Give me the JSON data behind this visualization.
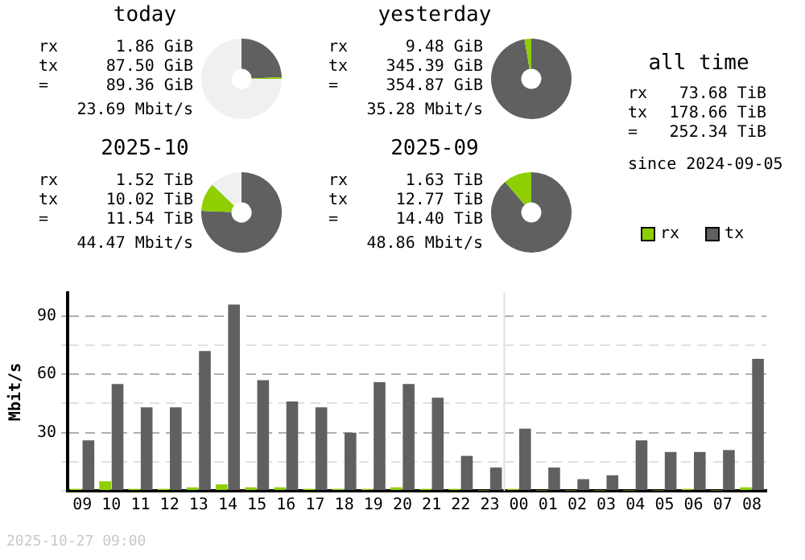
{
  "chart_data": [
    {
      "type": "donut",
      "title": "today",
      "categories": [
        null,
        null,
        null
      ],
      "values": [
        24.4,
        0.6,
        75.0
      ],
      "colors": [
        "#606060",
        "#8fce00",
        "#f0f0f0"
      ],
      "annotations": [
        "rx",
        "1.86 GiB",
        "tx",
        "87.50 GiB",
        "=",
        "89.36 GiB",
        "23.69 Mbit/s"
      ]
    },
    {
      "type": "donut",
      "title": "yesterday",
      "categories": [
        null,
        null
      ],
      "values": [
        97.3,
        2.7
      ],
      "colors": [
        "#606060",
        "#8fce00"
      ],
      "annotations": [
        "rx",
        "9.48 GiB",
        "tx",
        "345.39 GiB",
        "=",
        "354.87 GiB",
        "35.28 Mbit/s"
      ]
    },
    {
      "type": "other",
      "title": "all time",
      "annotations": [
        "rx",
        "73.68 TiB",
        "tx",
        "178.66 TiB",
        "=",
        "252.34 TiB",
        "since 2024-09-05"
      ]
    },
    {
      "type": "donut",
      "title": "2025-10",
      "categories": [
        null,
        null,
        null
      ],
      "values": [
        75.6,
        11.5,
        12.9
      ],
      "colors": [
        "#606060",
        "#8fce00",
        "#f0f0f0"
      ],
      "annotations": [
        "rx",
        "1.52 TiB",
        "tx",
        "10.02 TiB",
        "=",
        "11.54 TiB",
        "44.47 Mbit/s"
      ]
    },
    {
      "type": "donut",
      "title": "2025-09",
      "categories": [
        null,
        null
      ],
      "values": [
        88.7,
        11.3
      ],
      "colors": [
        "#606060",
        "#8fce00"
      ],
      "annotations": [
        "rx",
        "1.63 TiB",
        "tx",
        "12.77 TiB",
        "=",
        "14.40 TiB",
        "48.86 Mbit/s"
      ]
    },
    {
      "type": "bar",
      "ylabel": "Mbit/s",
      "legend": "top right",
      "grid": "y",
      "ylim": [
        0,
        102
      ],
      "yticks": [
        {
          "value": 0,
          "label": null
        },
        {
          "value": 15,
          "label": null
        },
        30,
        {
          "value": 45,
          "label": null
        },
        60,
        {
          "value": 75,
          "label": null
        },
        90
      ],
      "categories": [
        "09",
        "10",
        "11",
        "12",
        "13",
        "14",
        "15",
        "16",
        "17",
        "18",
        "19",
        "20",
        "21",
        "22",
        "23",
        "00",
        "01",
        "02",
        "03",
        "04",
        "05",
        "06",
        "07",
        "08"
      ],
      "series": [
        {
          "name": "rx",
          "color": "#8fce00",
          "values": [
            1.0,
            4.9,
            1.0,
            1.0,
            1.8,
            3.3,
            1.8,
            1.8,
            1.0,
            1.0,
            1.0,
            1.8,
            1.0,
            1.0,
            0.2,
            1.0,
            0.2,
            0.2,
            0.2,
            0.2,
            0.2,
            1.0,
            0.2,
            1.8
          ]
        },
        {
          "name": "tx",
          "color": "#606060",
          "values": [
            26,
            55,
            43,
            43,
            72,
            96,
            57,
            46,
            43,
            30,
            56,
            55,
            48,
            18,
            12,
            32,
            12,
            6,
            8,
            26,
            20,
            20,
            21,
            68
          ]
        }
      ],
      "ref_lines": [
        {
          "axis": "x",
          "value": "00",
          "color": "#e0e0e0"
        }
      ],
      "annotations": [
        "2025-10-27 09:00"
      ]
    }
  ]
}
